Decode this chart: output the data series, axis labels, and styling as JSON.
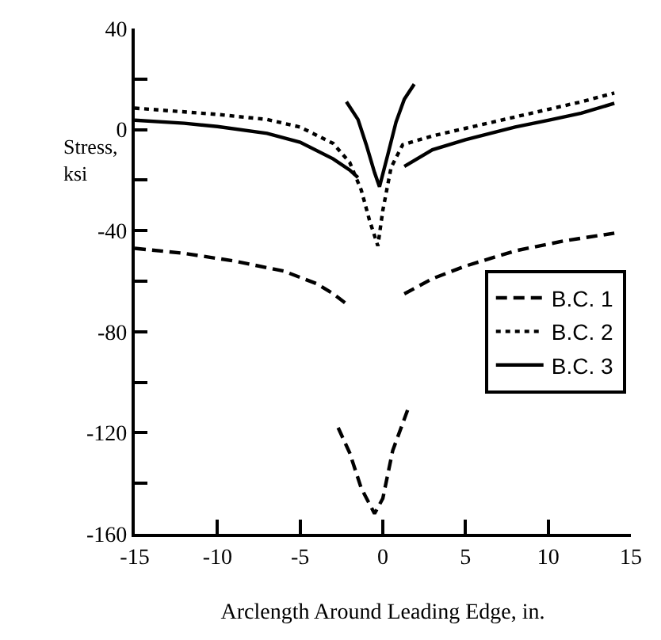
{
  "chart_data": {
    "type": "line",
    "xlabel": "Arclength Around Leading Edge, in.",
    "ylabel": "Stress,\nksi",
    "xlim": [
      -15,
      15
    ],
    "xticks": [
      -15,
      -10,
      -5,
      0,
      5,
      10,
      15
    ],
    "ylim": [
      -160,
      40
    ],
    "yticks": [
      -160,
      {
        "value": -140,
        "label": null
      },
      -120,
      {
        "value": -100,
        "label": null
      },
      -80,
      {
        "value": -60,
        "label": null
      },
      -40,
      {
        "value": -20,
        "label": null
      },
      0,
      {
        "value": 20,
        "label": null
      },
      40
    ],
    "legend": "right",
    "marker": "none",
    "series": [
      {
        "name": "B.C. 1",
        "color": "#000000",
        "line_style": "dashed",
        "x": [
          -15,
          -12,
          -9,
          -6,
          -4,
          -3,
          -2,
          null,
          -2.7,
          -2,
          -1.3,
          -0.5,
          0,
          0.6,
          1.5,
          null,
          1.3,
          3,
          5,
          8,
          11,
          14
        ],
        "values": [
          -47,
          -49,
          -52,
          -56,
          -61,
          -65,
          -70,
          null,
          -118,
          -128,
          -142,
          -152,
          -146,
          -127,
          -111,
          null,
          -65,
          -59,
          -54,
          -48,
          -44,
          -41
        ]
      },
      {
        "name": "B.C. 2",
        "color": "#000000",
        "line_style": "dotted",
        "x": [
          -15,
          -10,
          -7,
          -5,
          -3,
          -2,
          -1.3,
          -0.8,
          -0.3,
          0,
          0.5,
          1.2,
          3,
          5,
          8,
          10,
          12,
          14
        ],
        "values": [
          8.5,
          6,
          4,
          1,
          -5.5,
          -13,
          -24,
          -36,
          -46,
          -32,
          -15,
          -6,
          -2.5,
          0.5,
          5,
          8,
          11,
          14.5
        ]
      },
      {
        "name": "B.C. 3",
        "color": "#000000",
        "line_style": "solid",
        "x": [
          -15,
          -12,
          -10,
          -7,
          -5,
          -3,
          -2,
          -1.5,
          null,
          -2.2,
          -1.5,
          -1,
          -0.5,
          -0.2,
          0.3,
          0.8,
          1.3,
          1.9,
          null,
          1.3,
          3,
          5,
          8,
          10,
          12,
          14
        ],
        "values": [
          3.7,
          2.5,
          1.2,
          -1.5,
          -5,
          -11.6,
          -16,
          -19,
          null,
          11,
          4,
          -6,
          -17,
          -22.6,
          -10,
          3,
          12,
          18,
          null,
          -14.6,
          -8,
          -4,
          1,
          3.7,
          6.5,
          10.4
        ]
      }
    ]
  }
}
